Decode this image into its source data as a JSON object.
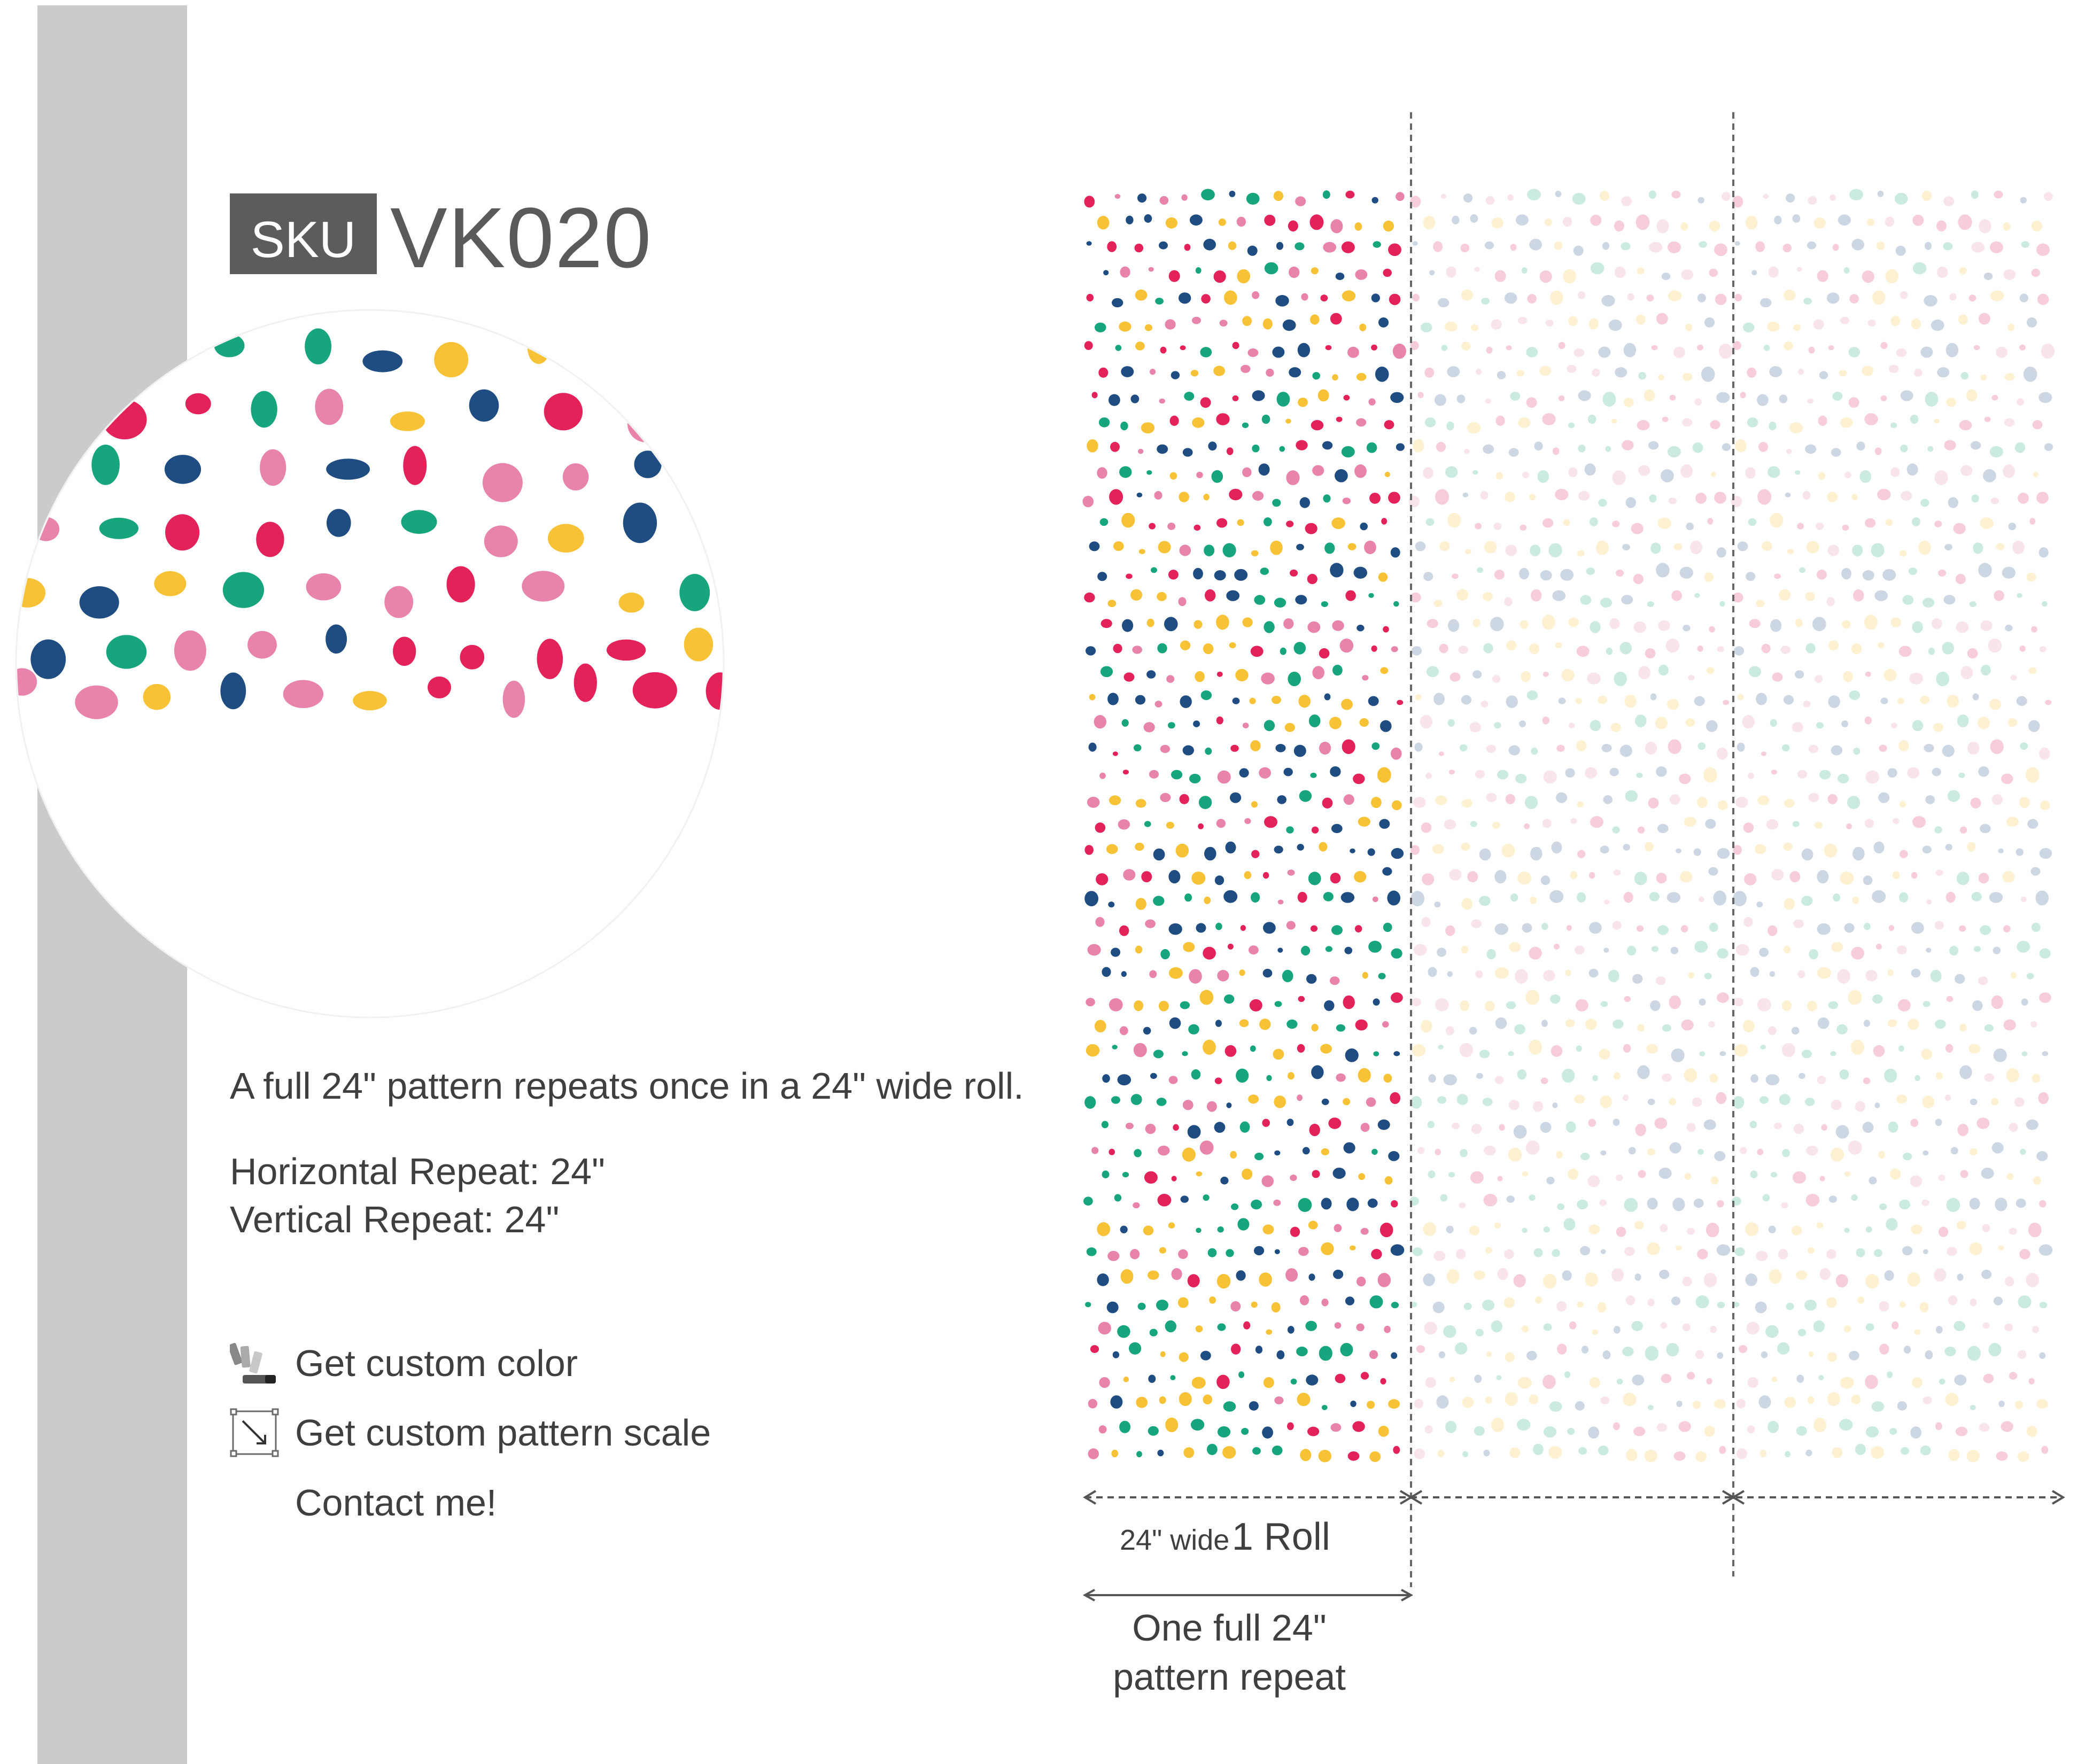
{
  "sku": {
    "label": "SKU",
    "code": "VK020"
  },
  "info": {
    "description": "A full 24\" pattern repeats once in a 24\" wide roll.",
    "horizontal_repeat": "Horizontal Repeat: 24\"",
    "vertical_repeat": "Vertical Repeat: 24\""
  },
  "actions": {
    "custom_color": "Get custom color",
    "custom_scale": "Get custom pattern scale",
    "contact": "Contact me!"
  },
  "roll": {
    "width_label": "24\" wide",
    "roll_label": "1 Roll",
    "repeat_caption_line1": "One full 24\"",
    "repeat_caption_line2": "pattern repeat"
  },
  "colors": {
    "red": "#e4225a",
    "yellow": "#f7c236",
    "green": "#16a57c",
    "navy": "#1f4d82",
    "pink": "#e883ab",
    "band": "#cbcbcb",
    "text": "#3f3f3f",
    "sku_box": "#5c5c5c"
  },
  "icons": {
    "color": "palette-swatch-icon",
    "scale": "resize-arrow-icon"
  }
}
